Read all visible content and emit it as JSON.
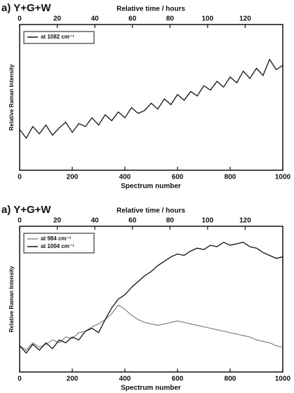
{
  "chart_data": [
    {
      "type": "line",
      "title": "a) Y+G+W",
      "x2label": "Relative time / hours",
      "xlabel": "Spectrum number",
      "ylabel": "Relative Raman Intensity",
      "xlim": [
        0,
        1000
      ],
      "xticks": [
        0,
        200,
        400,
        600,
        800,
        1000
      ],
      "x2lim": [
        0,
        140
      ],
      "x2ticks": [
        0,
        20,
        40,
        60,
        80,
        100,
        120
      ],
      "ylim": [
        0,
        10
      ],
      "legend": "upper left",
      "x": [
        0,
        25,
        50,
        75,
        100,
        125,
        150,
        175,
        200,
        225,
        250,
        275,
        300,
        325,
        350,
        375,
        400,
        425,
        450,
        475,
        500,
        525,
        550,
        575,
        600,
        625,
        650,
        675,
        700,
        725,
        750,
        775,
        800,
        825,
        850,
        875,
        900,
        925,
        950,
        975,
        1000
      ],
      "series": [
        {
          "name": "at 1082 cm⁻¹",
          "color": "#111111",
          "values": [
            2.8,
            2.2,
            3.0,
            2.5,
            3.1,
            2.4,
            2.9,
            3.3,
            2.6,
            3.2,
            3.0,
            3.6,
            3.1,
            3.8,
            3.4,
            4.0,
            3.6,
            4.3,
            3.9,
            4.1,
            4.6,
            4.2,
            4.9,
            4.5,
            5.2,
            4.8,
            5.4,
            5.1,
            5.8,
            5.5,
            6.1,
            5.7,
            6.4,
            6.0,
            6.8,
            6.3,
            7.0,
            6.5,
            7.6,
            6.9,
            7.2
          ]
        }
      ]
    },
    {
      "type": "line",
      "title": "a) Y+G+W",
      "x2label": "Relative time / hours",
      "xlabel": "Spectrum number",
      "ylabel": "Relative Raman Intensity",
      "xlim": [
        0,
        1000
      ],
      "xticks": [
        0,
        200,
        400,
        600,
        800,
        1000
      ],
      "x2lim": [
        0,
        140
      ],
      "x2ticks": [
        0,
        20,
        40,
        60,
        80,
        100,
        120
      ],
      "ylim": [
        0,
        10
      ],
      "legend": "upper left",
      "x": [
        0,
        25,
        50,
        75,
        100,
        125,
        150,
        175,
        200,
        225,
        250,
        275,
        300,
        325,
        350,
        375,
        400,
        425,
        450,
        475,
        500,
        525,
        550,
        575,
        600,
        625,
        650,
        675,
        700,
        725,
        750,
        775,
        800,
        825,
        850,
        875,
        900,
        925,
        950,
        975,
        1000
      ],
      "series": [
        {
          "name": "at 984 cm⁻¹",
          "color": "#8a8a8a",
          "values": [
            1.8,
            1.5,
            2.0,
            1.7,
            1.9,
            2.2,
            2.0,
            2.4,
            2.3,
            2.7,
            2.8,
            3.1,
            3.3,
            3.6,
            4.0,
            4.6,
            4.3,
            3.9,
            3.6,
            3.4,
            3.3,
            3.2,
            3.3,
            3.4,
            3.5,
            3.4,
            3.3,
            3.2,
            3.1,
            3.0,
            2.9,
            2.8,
            2.7,
            2.6,
            2.5,
            2.4,
            2.2,
            2.1,
            2.0,
            1.8,
            1.7
          ]
        },
        {
          "name": "at 1004 cm⁻¹",
          "color": "#111111",
          "values": [
            1.8,
            1.3,
            1.9,
            1.5,
            2.0,
            1.6,
            2.2,
            2.0,
            2.4,
            2.2,
            2.8,
            3.0,
            2.7,
            3.6,
            4.4,
            5.0,
            5.3,
            5.8,
            6.2,
            6.6,
            6.9,
            7.3,
            7.6,
            7.9,
            8.1,
            8.0,
            8.3,
            8.5,
            8.4,
            8.7,
            8.6,
            8.9,
            8.7,
            8.8,
            8.9,
            8.6,
            8.5,
            8.2,
            8.0,
            7.8,
            7.9
          ]
        }
      ]
    }
  ]
}
